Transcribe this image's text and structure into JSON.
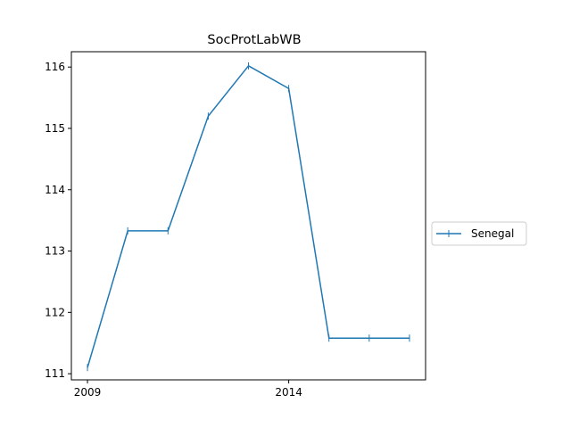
{
  "chart_data": {
    "type": "line",
    "title": "SocProtLabWB",
    "xlabel": "",
    "ylabel": "",
    "x": [
      2009,
      2010,
      2011,
      2012,
      2013,
      2014,
      2015,
      2016,
      2017
    ],
    "x_tick_values": [
      2009,
      2014
    ],
    "x_tick_labels": [
      "2009",
      "2014"
    ],
    "y_tick_values": [
      111,
      112,
      113,
      114,
      115,
      116
    ],
    "y_tick_labels": [
      "111",
      "112",
      "113",
      "114",
      "115",
      "116"
    ],
    "xlim": [
      2008.6,
      2017.4
    ],
    "ylim": [
      110.9,
      116.25
    ],
    "grid": false,
    "legend_position": "center-right-outside",
    "series": [
      {
        "name": "Senegal",
        "color": "#1f77b4",
        "marker": "vertical-tick",
        "values": [
          111.1,
          113.33,
          113.33,
          115.2,
          116.02,
          115.65,
          111.58,
          111.58,
          111.58
        ]
      }
    ]
  }
}
